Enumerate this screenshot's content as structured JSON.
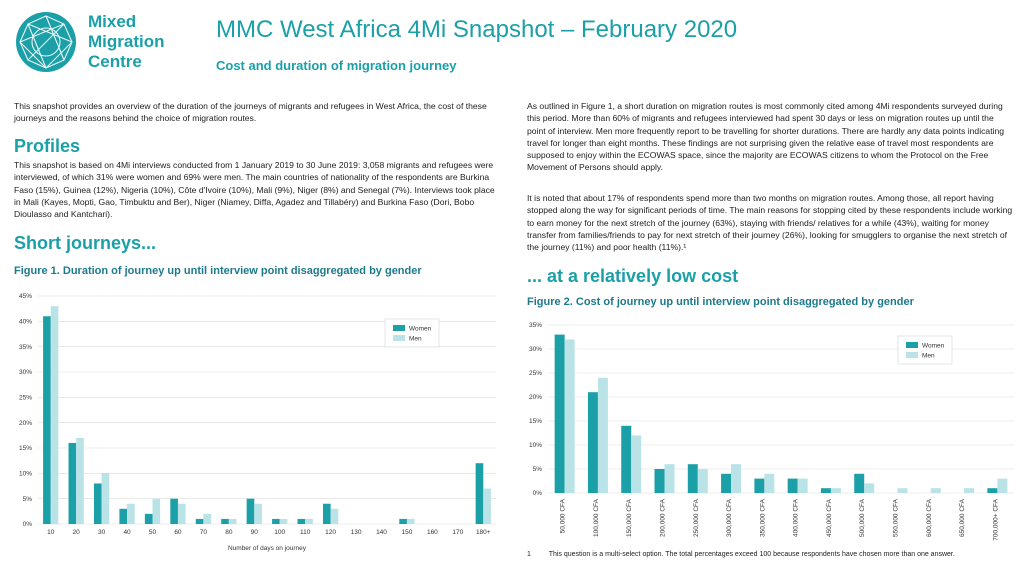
{
  "brand": {
    "line1": "Mixed",
    "line2": "Migration",
    "line3": "Centre",
    "color": "#1ba0a8"
  },
  "header": {
    "title": "MMC West Africa 4Mi Snapshot – February 2020",
    "subtitle": "Cost and duration of migration journey"
  },
  "left": {
    "intro": "This snapshot provides an overview of the duration of the journeys of migrants and refugees in West Africa, the cost of these journeys and the reasons behind the choice of migration routes.",
    "profiles_heading": "Profiles",
    "profiles_text": "This snapshot is based on 4Mi interviews conducted from 1 January 2019 to 30 June 2019: 3,058 migrants and refugees were interviewed, of which 31% were women and 69% were men. The main countries of nationality of the respondents are Burkina Faso (15%), Guinea (12%), Nigeria (10%), Côte d'Ivoire (10%), Mali (9%), Niger (8%) and Senegal (7%). Interviews took place in Mali (Kayes, Mopti, Gao, Timbuktu and Ber), Niger (Niamey, Diffa, Agadez and Tillabéry) and Burkina Faso (Dori, Bobo Dioulasso and Kantchari).",
    "short_heading": "Short journeys...",
    "fig1_title": "Figure 1. Duration of journey up until interview point disaggregated by gender"
  },
  "right": {
    "para1": "As outlined in Figure 1, a short duration on migration routes is most commonly cited among 4Mi respondents surveyed during this period. More than 60% of migrants and refugees interviewed had spent 30 days or less on migration routes up until the point of interview. Men more frequently report to be travelling for shorter durations. There are hardly any data points indicating travel for longer than eight months. These findings are not surprising given the relative ease of travel most respondents are supposed to enjoy within the ECOWAS space, since the majority are ECOWAS citizens to whom the Protocol on the Free Movement of Persons should apply.",
    "para2": "It is noted that about 17% of respondents spend more than two months on migration routes.  Among those, all report having stopped along the way for significant periods of time. The main reasons for stopping cited by these respondents include working to earn money for the next stretch of the journey (63%), staying with friends/ relatives for a while (43%), waiting for money transfer from families/friends to pay for next stretch of their journey (26%), looking for smugglers to organise the next stretch of the journey (11%) and poor health (11%).¹",
    "cost_heading": "... at a relatively low cost",
    "fig2_title": "Figure 2. Cost of journey up until interview point disaggregated by gender",
    "footnote_num": "1",
    "footnote": "This question is a multi-select option. The total percentages exceed 100 because respondents have chosen more than one answer."
  },
  "colors": {
    "women": "#1ba0a8",
    "men": "#b9e3e6",
    "grid": "#dcdcdc"
  },
  "chart_data": [
    {
      "type": "bar",
      "xlabel": "Number of days on journey",
      "ylabel": "",
      "ylim": [
        0,
        45
      ],
      "yticks": [
        "0%",
        "5%",
        "10%",
        "15%",
        "20%",
        "25%",
        "30%",
        "35%",
        "40%",
        "45%"
      ],
      "categories": [
        "10",
        "20",
        "30",
        "40",
        "50",
        "60",
        "70",
        "80",
        "90",
        "100",
        "110",
        "120",
        "130",
        "140",
        "150",
        "160",
        "170",
        "180+"
      ],
      "series": [
        {
          "name": "Women",
          "values": [
            41,
            16,
            8,
            3,
            2,
            5,
            1,
            1,
            5,
            1,
            1,
            4,
            0,
            0,
            1,
            0,
            0,
            12
          ]
        },
        {
          "name": "Men",
          "values": [
            43,
            17,
            10,
            4,
            5,
            4,
            2,
            1,
            4,
            1,
            1,
            3,
            0,
            0,
            1,
            0,
            0,
            7
          ]
        }
      ],
      "legend": "top-right",
      "grid": true
    },
    {
      "type": "bar",
      "xlabel": "",
      "ylabel": "",
      "ylim": [
        0,
        35
      ],
      "yticks": [
        "0%",
        "5%",
        "10%",
        "15%",
        "20%",
        "25%",
        "30%",
        "35%"
      ],
      "categories": [
        "50,000 CFA",
        "100,000 CFA",
        "150,000 CFA",
        "200,000 CFA",
        "250,000 CFA",
        "300,000 CFA",
        "350,000 CFA",
        "400,000 CFA",
        "450,000 CFA",
        "500,000 CFA",
        "550,000 CFA",
        "600,000 CFA",
        "650,000 CFA",
        "700,000+ CFA"
      ],
      "series": [
        {
          "name": "Women",
          "values": [
            33,
            21,
            14,
            5,
            6,
            4,
            3,
            3,
            1,
            4,
            0,
            0,
            0,
            1
          ]
        },
        {
          "name": "Men",
          "values": [
            32,
            24,
            12,
            6,
            5,
            6,
            4,
            3,
            1,
            2,
            1,
            1,
            1,
            3
          ]
        }
      ],
      "legend": "top-right",
      "grid": true
    }
  ]
}
